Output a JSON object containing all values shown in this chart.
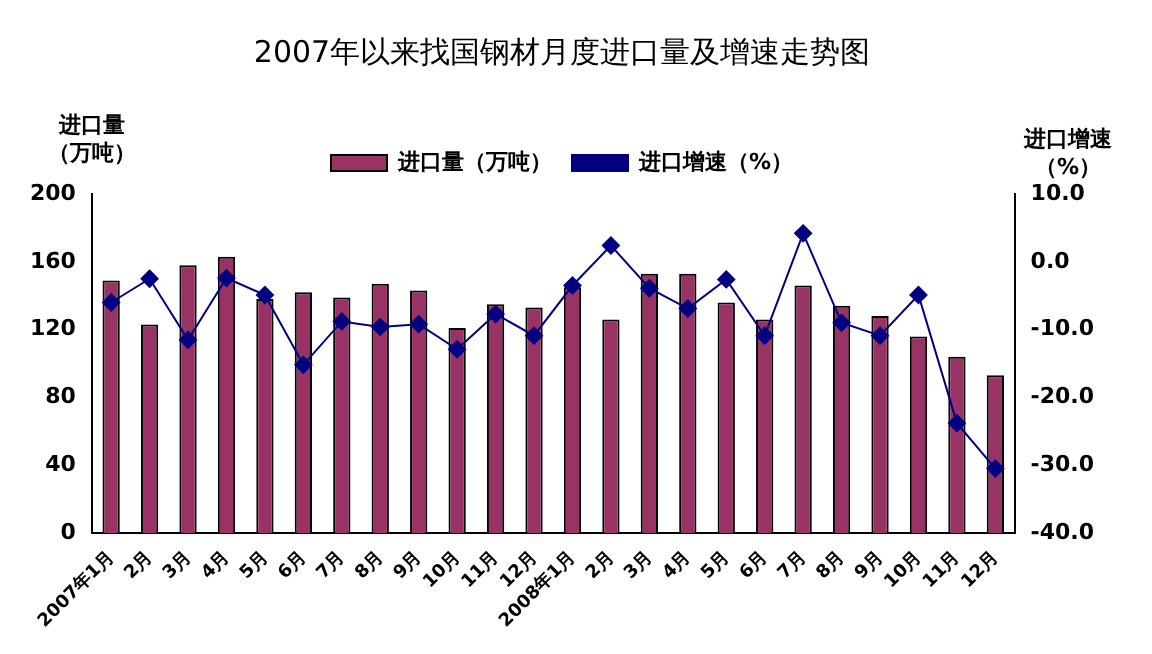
{
  "chart_data": {
    "type": "bar",
    "title": "2007年以来找国钢材月度进口量及增速走势图",
    "ylabel": "进口量（万吨）",
    "y2label": "进口增速（%）",
    "categories": [
      "2007年1月",
      "2月",
      "3月",
      "4月",
      "5月",
      "6月",
      "7月",
      "8月",
      "9月",
      "10月",
      "11月",
      "12月",
      "2008年1月",
      "2月",
      "3月",
      "4月",
      "5月",
      "6月",
      "7月",
      "8月",
      "9月",
      "10月",
      "11月",
      "12月"
    ],
    "series": [
      {
        "name": "进口量（万吨）",
        "color": "#993366",
        "values": [
          149,
          123,
          158,
          163,
          138,
          142,
          139,
          147,
          143,
          121,
          135,
          133,
          145,
          126,
          153,
          153,
          136,
          126,
          146,
          134,
          128,
          116,
          104,
          93
        ]
      },
      {
        "name": "进口增速（%）",
        "type": "line",
        "axis": "y2",
        "color": "#000080",
        "marker": "diamond",
        "values": [
          -6.0,
          -2.5,
          -11.5,
          -2.4,
          -4.9,
          -15.2,
          -8.8,
          -9.6,
          -9.2,
          -12.9,
          -7.7,
          -10.9,
          -3.5,
          2.4,
          -3.9,
          -6.9,
          -2.6,
          -10.9,
          4.2,
          -9.0,
          -10.9,
          -4.9,
          -23.8,
          -30.5
        ]
      }
    ],
    "ylim": [
      0,
      200
    ],
    "yticks": [
      0,
      40,
      80,
      120,
      160,
      200
    ],
    "y2lim": [
      -40,
      10
    ],
    "y2ticks": [
      {
        "value": 10,
        "label": "10.0"
      },
      {
        "value": 0,
        "label": "0.0"
      },
      {
        "value": -10,
        "label": "-10.0"
      },
      {
        "value": -20,
        "label": "-20.0"
      },
      {
        "value": -30,
        "label": "-30.0"
      },
      {
        "value": -40,
        "label": "-40.0"
      }
    ],
    "legend": "top",
    "grid": false
  }
}
